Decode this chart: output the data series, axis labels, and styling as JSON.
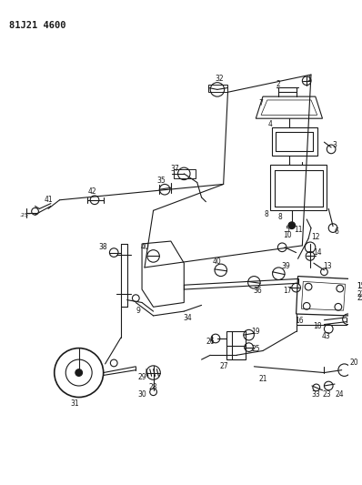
{
  "title": "81J21 4600",
  "bg_color": "#ffffff",
  "line_color": "#1a1a1a",
  "fig_width": 3.98,
  "fig_height": 5.33,
  "dpi": 100,
  "title_fontsize": 7.5,
  "label_fontsize": 5.5
}
